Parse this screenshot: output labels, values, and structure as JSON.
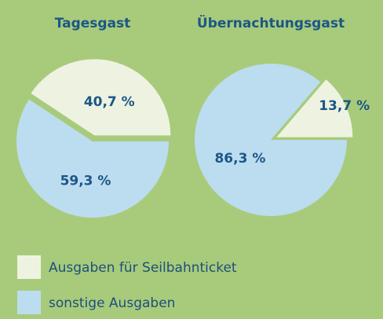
{
  "chart_data": [
    {
      "type": "pie",
      "title": "Tagesgast",
      "values": [
        40.7,
        59.3
      ],
      "value_labels": [
        "40,7 %",
        "59,3 %"
      ],
      "colors": [
        "#eef3e1",
        "#bcdcf0"
      ]
    },
    {
      "type": "pie",
      "title": "Übernachtungsgast",
      "values": [
        13.7,
        86.3
      ],
      "value_labels": [
        "13,7 %",
        "86,3 %"
      ],
      "colors": [
        "#eef3e1",
        "#bcdcf0"
      ]
    }
  ],
  "legend": {
    "labels": [
      "Ausgaben für Seilbahnticket",
      "sonstige Ausgaben"
    ],
    "colors": [
      "#eef3e1",
      "#bcdcf0"
    ]
  }
}
